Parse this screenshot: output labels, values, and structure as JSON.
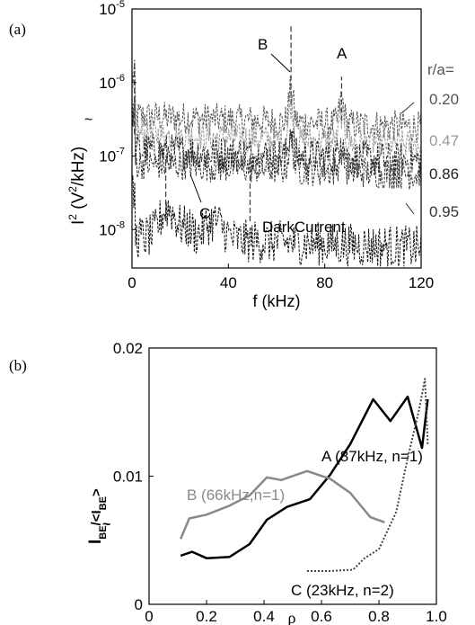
{
  "chart_data": [
    {
      "panel_label": "(a)",
      "type": "line",
      "xlabel": "f (kHz)",
      "ylabel_main": "I",
      "ylabel_sup": "2",
      "ylabel_unit_pre": "(V",
      "ylabel_unit_sup": "2",
      "ylabel_unit_post": "/kHz)",
      "xlim": [
        0,
        120
      ],
      "ylim": [
        3e-09,
        1e-05
      ],
      "y_scale": "log",
      "x_ticks": [
        "0",
        "40",
        "80",
        "120"
      ],
      "y_ticks": [
        {
          "base": "10",
          "exp": "-5"
        },
        {
          "base": "10",
          "exp": "-6"
        },
        {
          "base": "10",
          "exp": "-7"
        },
        {
          "base": "10",
          "exp": "-8"
        }
      ],
      "legend_title": "r/a=",
      "series": [
        {
          "name": "0.20",
          "color": "#555555",
          "baseline": 3.5e-07,
          "noise": 0.22
        },
        {
          "name": "0.47",
          "color": "#999999",
          "baseline": 2e-07,
          "noise": 0.2
        },
        {
          "name": "0.86",
          "color": "#222222",
          "baseline": 1.2e-07,
          "noise": 0.25
        },
        {
          "name": "0.95",
          "color": "#333333",
          "baseline": 8e-08,
          "noise": 0.22
        },
        {
          "name": "DarkCurrent",
          "color": "#111111",
          "baseline": 8e-09,
          "noise": 0.3
        }
      ],
      "annotations": [
        "B",
        "A",
        "C"
      ],
      "peaks": [
        {
          "label": "B",
          "x": 66,
          "y": 1.2e-06
        },
        {
          "label": "A",
          "x": 87,
          "y": 8e-07
        },
        {
          "label": "C",
          "x": 23,
          "y": 3e-08
        }
      ],
      "dark_current_label": "DarkCurrent"
    },
    {
      "panel_label": "(b)",
      "type": "line",
      "xlabel": "ρ",
      "ylabel_main": "I",
      "ylabel_sub1": "BE",
      "ylabel_mid": "/<I",
      "ylabel_sub2": "BE",
      "ylabel_end": ">",
      "xlim": [
        0,
        1.0
      ],
      "ylim": [
        0,
        0.02
      ],
      "x_ticks": [
        "0",
        "0.2",
        "0.4",
        "0.6",
        "0.8",
        "1.0"
      ],
      "y_ticks": [
        "0",
        "0.01",
        "0.02"
      ],
      "series": [
        {
          "name": "A (87kHz, n=1)",
          "color": "#000000",
          "style": "solid",
          "x": [
            0.11,
            0.15,
            0.2,
            0.28,
            0.35,
            0.41,
            0.48,
            0.56,
            0.63,
            0.7,
            0.78,
            0.84,
            0.9,
            0.95,
            0.97
          ],
          "y": [
            0.0038,
            0.0041,
            0.0036,
            0.0037,
            0.0047,
            0.0066,
            0.0076,
            0.0082,
            0.0101,
            0.0125,
            0.016,
            0.0143,
            0.0162,
            0.0122,
            0.016
          ]
        },
        {
          "name": "B (66kHz,n=1)",
          "color": "#888888",
          "style": "solid",
          "x": [
            0.11,
            0.14,
            0.2,
            0.28,
            0.35,
            0.41,
            0.46,
            0.55,
            0.63,
            0.7,
            0.77,
            0.82
          ],
          "y": [
            0.0051,
            0.0067,
            0.007,
            0.0077,
            0.0085,
            0.0099,
            0.0097,
            0.0104,
            0.0098,
            0.0087,
            0.0068,
            0.0064
          ]
        },
        {
          "name": "C (23kHz, n=2)",
          "color": "#444444",
          "style": "dotted",
          "x": [
            0.55,
            0.63,
            0.71,
            0.75,
            0.8,
            0.86,
            0.9,
            0.94,
            0.96,
            0.97
          ],
          "y": [
            0.0026,
            0.0026,
            0.0027,
            0.0036,
            0.0043,
            0.0072,
            0.0114,
            0.0152,
            0.0176,
            0.0125
          ]
        }
      ]
    }
  ]
}
